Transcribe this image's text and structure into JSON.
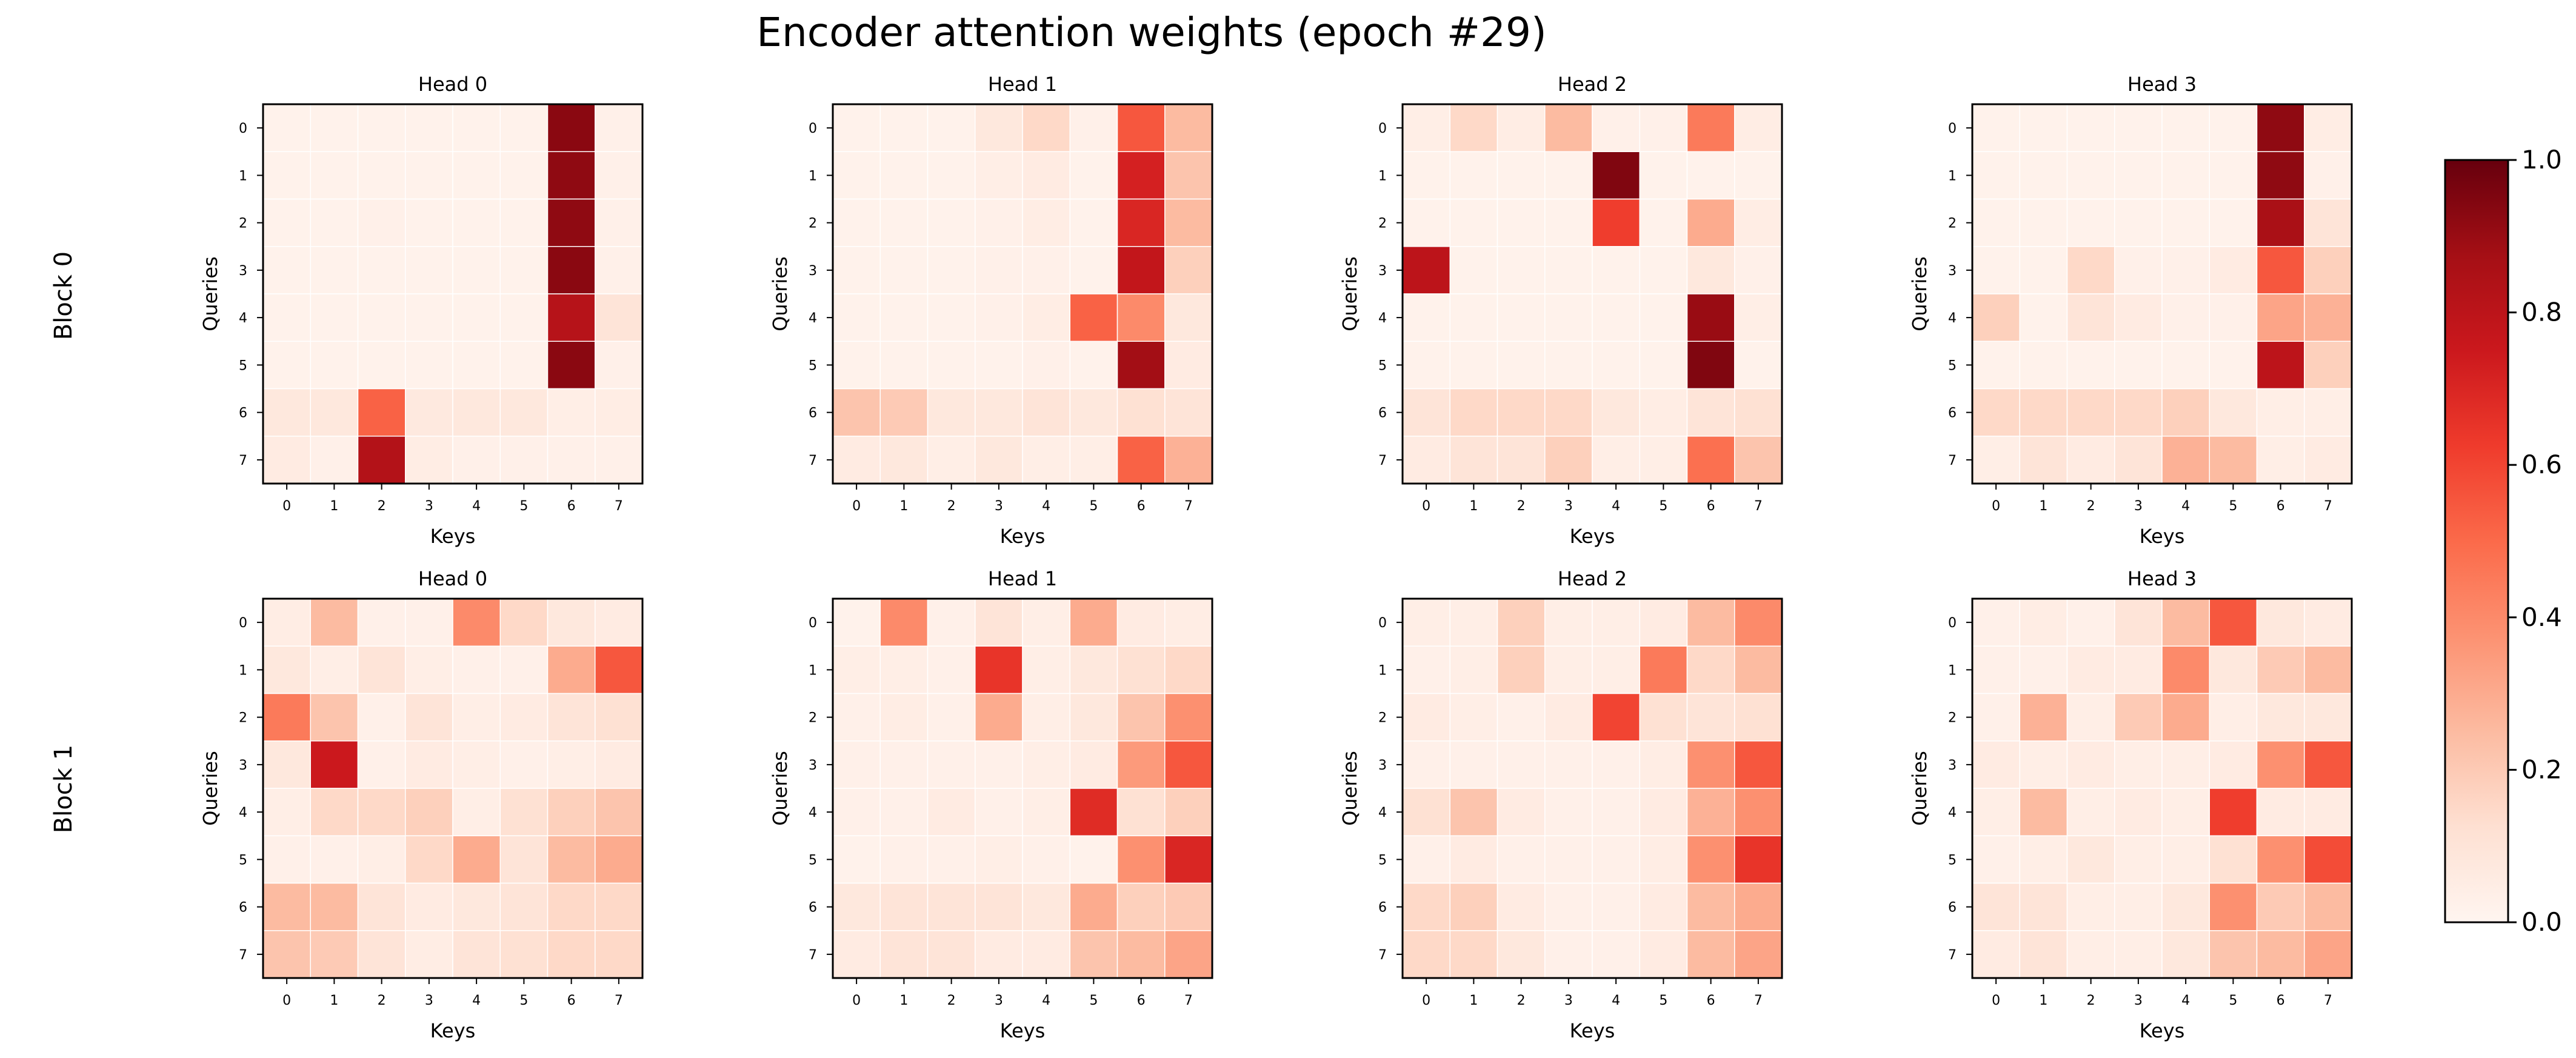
{
  "figure": {
    "title": "Encoder attention weights (epoch #29)",
    "row_labels": [
      "Block 0",
      "Block 1"
    ],
    "colors": {
      "cmap": "Reds",
      "cmap_stops": [
        "#fff5f0",
        "#fee0d2",
        "#fcbba1",
        "#fc9272",
        "#fb6a4a",
        "#ef3b2c",
        "#cb181d",
        "#a50f15",
        "#67000d"
      ],
      "frame": "#000000",
      "cell_border": "#ffffff"
    }
  },
  "colorbar": {
    "vmin": 0.0,
    "vmax": 1.0,
    "ticks": [
      0.0,
      0.2,
      0.4,
      0.6,
      0.8,
      1.0
    ],
    "tick_labels": [
      "0.0",
      "0.2",
      "0.4",
      "0.6",
      "0.8",
      "1.0"
    ]
  },
  "chart_data": [
    {
      "type": "heatmap",
      "block": "Block 0",
      "title": "Head 0",
      "xlabel": "Keys",
      "ylabel": "Queries",
      "x": [
        "0",
        "1",
        "2",
        "3",
        "4",
        "5",
        "6",
        "7"
      ],
      "y": [
        "0",
        "1",
        "2",
        "3",
        "4",
        "5",
        "6",
        "7"
      ],
      "values": [
        [
          0.02,
          0.02,
          0.02,
          0.02,
          0.02,
          0.02,
          0.93,
          0.03
        ],
        [
          0.02,
          0.02,
          0.02,
          0.02,
          0.02,
          0.02,
          0.92,
          0.03
        ],
        [
          0.02,
          0.02,
          0.03,
          0.02,
          0.02,
          0.02,
          0.92,
          0.03
        ],
        [
          0.02,
          0.02,
          0.02,
          0.02,
          0.02,
          0.02,
          0.93,
          0.03
        ],
        [
          0.02,
          0.02,
          0.02,
          0.02,
          0.02,
          0.02,
          0.82,
          0.1
        ],
        [
          0.02,
          0.02,
          0.02,
          0.02,
          0.02,
          0.02,
          0.93,
          0.03
        ],
        [
          0.08,
          0.08,
          0.52,
          0.07,
          0.08,
          0.08,
          0.04,
          0.05
        ],
        [
          0.06,
          0.03,
          0.83,
          0.05,
          0.03,
          0.03,
          0.03,
          0.03
        ]
      ]
    },
    {
      "type": "heatmap",
      "block": "Block 0",
      "title": "Head 1",
      "xlabel": "Keys",
      "ylabel": "Queries",
      "x": [
        "0",
        "1",
        "2",
        "3",
        "4",
        "5",
        "6",
        "7"
      ],
      "y": [
        "0",
        "1",
        "2",
        "3",
        "4",
        "5",
        "6",
        "7"
      ],
      "values": [
        [
          0.02,
          0.02,
          0.02,
          0.08,
          0.15,
          0.03,
          0.55,
          0.25
        ],
        [
          0.02,
          0.02,
          0.02,
          0.04,
          0.06,
          0.02,
          0.72,
          0.22
        ],
        [
          0.02,
          0.02,
          0.02,
          0.03,
          0.05,
          0.02,
          0.7,
          0.25
        ],
        [
          0.02,
          0.02,
          0.02,
          0.03,
          0.03,
          0.02,
          0.78,
          0.18
        ],
        [
          0.02,
          0.02,
          0.02,
          0.03,
          0.05,
          0.52,
          0.4,
          0.08
        ],
        [
          0.02,
          0.02,
          0.02,
          0.02,
          0.03,
          0.02,
          0.88,
          0.06
        ],
        [
          0.22,
          0.2,
          0.08,
          0.08,
          0.1,
          0.08,
          0.12,
          0.1
        ],
        [
          0.06,
          0.08,
          0.04,
          0.08,
          0.04,
          0.04,
          0.52,
          0.28
        ]
      ]
    },
    {
      "type": "heatmap",
      "block": "Block 0",
      "title": "Head 2",
      "xlabel": "Keys",
      "ylabel": "Queries",
      "x": [
        "0",
        "1",
        "2",
        "3",
        "4",
        "5",
        "6",
        "7"
      ],
      "y": [
        "0",
        "1",
        "2",
        "3",
        "4",
        "5",
        "6",
        "7"
      ],
      "values": [
        [
          0.04,
          0.15,
          0.05,
          0.25,
          0.03,
          0.03,
          0.45,
          0.05
        ],
        [
          0.02,
          0.02,
          0.02,
          0.02,
          0.95,
          0.02,
          0.02,
          0.02
        ],
        [
          0.02,
          0.02,
          0.02,
          0.02,
          0.62,
          0.02,
          0.3,
          0.05
        ],
        [
          0.8,
          0.02,
          0.02,
          0.02,
          0.02,
          0.02,
          0.08,
          0.03
        ],
        [
          0.02,
          0.02,
          0.02,
          0.02,
          0.02,
          0.02,
          0.9,
          0.04
        ],
        [
          0.02,
          0.02,
          0.02,
          0.02,
          0.02,
          0.02,
          0.95,
          0.02
        ],
        [
          0.1,
          0.15,
          0.15,
          0.15,
          0.08,
          0.05,
          0.1,
          0.12
        ],
        [
          0.06,
          0.1,
          0.1,
          0.18,
          0.04,
          0.04,
          0.48,
          0.22
        ]
      ]
    },
    {
      "type": "heatmap",
      "block": "Block 0",
      "title": "Head 3",
      "xlabel": "Keys",
      "ylabel": "Queries",
      "x": [
        "0",
        "1",
        "2",
        "3",
        "4",
        "5",
        "6",
        "7"
      ],
      "y": [
        "0",
        "1",
        "2",
        "3",
        "4",
        "5",
        "6",
        "7"
      ],
      "values": [
        [
          0.02,
          0.02,
          0.02,
          0.02,
          0.02,
          0.02,
          0.92,
          0.05
        ],
        [
          0.02,
          0.02,
          0.02,
          0.02,
          0.02,
          0.02,
          0.92,
          0.03
        ],
        [
          0.02,
          0.02,
          0.02,
          0.02,
          0.02,
          0.02,
          0.86,
          0.1
        ],
        [
          0.02,
          0.02,
          0.15,
          0.03,
          0.03,
          0.06,
          0.55,
          0.18
        ],
        [
          0.18,
          0.02,
          0.1,
          0.06,
          0.03,
          0.03,
          0.32,
          0.28
        ],
        [
          0.02,
          0.02,
          0.02,
          0.02,
          0.02,
          0.02,
          0.8,
          0.18
        ],
        [
          0.15,
          0.15,
          0.15,
          0.15,
          0.18,
          0.08,
          0.04,
          0.04
        ],
        [
          0.04,
          0.1,
          0.06,
          0.1,
          0.28,
          0.25,
          0.04,
          0.06
        ]
      ]
    },
    {
      "type": "heatmap",
      "block": "Block 1",
      "title": "Head 0",
      "xlabel": "Keys",
      "ylabel": "Queries",
      "x": [
        "0",
        "1",
        "2",
        "3",
        "4",
        "5",
        "6",
        "7"
      ],
      "y": [
        "0",
        "1",
        "2",
        "3",
        "4",
        "5",
        "6",
        "7"
      ],
      "values": [
        [
          0.05,
          0.25,
          0.03,
          0.03,
          0.4,
          0.15,
          0.08,
          0.06
        ],
        [
          0.08,
          0.04,
          0.1,
          0.04,
          0.03,
          0.03,
          0.3,
          0.55
        ],
        [
          0.45,
          0.22,
          0.03,
          0.1,
          0.04,
          0.06,
          0.1,
          0.12
        ],
        [
          0.08,
          0.75,
          0.03,
          0.06,
          0.04,
          0.03,
          0.04,
          0.06
        ],
        [
          0.04,
          0.15,
          0.15,
          0.18,
          0.04,
          0.12,
          0.18,
          0.22
        ],
        [
          0.03,
          0.03,
          0.04,
          0.15,
          0.3,
          0.1,
          0.25,
          0.3
        ],
        [
          0.25,
          0.25,
          0.1,
          0.06,
          0.08,
          0.1,
          0.15,
          0.15
        ],
        [
          0.22,
          0.2,
          0.1,
          0.05,
          0.1,
          0.12,
          0.15,
          0.15
        ]
      ]
    },
    {
      "type": "heatmap",
      "block": "Block 1",
      "title": "Head 1",
      "xlabel": "Keys",
      "ylabel": "Queries",
      "x": [
        "0",
        "1",
        "2",
        "3",
        "4",
        "5",
        "6",
        "7"
      ],
      "y": [
        "0",
        "1",
        "2",
        "3",
        "4",
        "5",
        "6",
        "7"
      ],
      "values": [
        [
          0.02,
          0.4,
          0.03,
          0.1,
          0.04,
          0.3,
          0.06,
          0.05
        ],
        [
          0.04,
          0.04,
          0.03,
          0.65,
          0.04,
          0.08,
          0.12,
          0.15
        ],
        [
          0.03,
          0.05,
          0.03,
          0.3,
          0.04,
          0.08,
          0.22,
          0.38
        ],
        [
          0.03,
          0.03,
          0.03,
          0.03,
          0.04,
          0.06,
          0.35,
          0.55
        ],
        [
          0.03,
          0.03,
          0.06,
          0.03,
          0.04,
          0.68,
          0.12,
          0.18
        ],
        [
          0.02,
          0.03,
          0.03,
          0.04,
          0.03,
          0.02,
          0.38,
          0.7
        ],
        [
          0.08,
          0.1,
          0.1,
          0.1,
          0.08,
          0.3,
          0.18,
          0.2
        ],
        [
          0.06,
          0.1,
          0.1,
          0.06,
          0.06,
          0.22,
          0.25,
          0.32
        ]
      ]
    },
    {
      "type": "heatmap",
      "block": "Block 1",
      "title": "Head 2",
      "xlabel": "Keys",
      "ylabel": "Queries",
      "x": [
        "0",
        "1",
        "2",
        "3",
        "4",
        "5",
        "6",
        "7"
      ],
      "y": [
        "0",
        "1",
        "2",
        "3",
        "4",
        "5",
        "6",
        "7"
      ],
      "values": [
        [
          0.04,
          0.04,
          0.18,
          0.04,
          0.04,
          0.06,
          0.25,
          0.4
        ],
        [
          0.03,
          0.04,
          0.18,
          0.04,
          0.04,
          0.45,
          0.15,
          0.25
        ],
        [
          0.06,
          0.04,
          0.03,
          0.06,
          0.6,
          0.12,
          0.1,
          0.12
        ],
        [
          0.03,
          0.03,
          0.03,
          0.03,
          0.03,
          0.05,
          0.38,
          0.55
        ],
        [
          0.12,
          0.22,
          0.06,
          0.03,
          0.03,
          0.06,
          0.28,
          0.38
        ],
        [
          0.03,
          0.06,
          0.03,
          0.03,
          0.03,
          0.05,
          0.38,
          0.65
        ],
        [
          0.15,
          0.18,
          0.06,
          0.03,
          0.03,
          0.06,
          0.25,
          0.3
        ],
        [
          0.15,
          0.15,
          0.08,
          0.03,
          0.03,
          0.06,
          0.25,
          0.32
        ]
      ]
    },
    {
      "type": "heatmap",
      "block": "Block 1",
      "title": "Head 3",
      "xlabel": "Keys",
      "ylabel": "Queries",
      "x": [
        "0",
        "1",
        "2",
        "3",
        "4",
        "5",
        "6",
        "7"
      ],
      "y": [
        "0",
        "1",
        "2",
        "3",
        "4",
        "5",
        "6",
        "7"
      ],
      "values": [
        [
          0.03,
          0.05,
          0.03,
          0.1,
          0.25,
          0.55,
          0.08,
          0.06
        ],
        [
          0.03,
          0.03,
          0.06,
          0.06,
          0.4,
          0.08,
          0.2,
          0.25
        ],
        [
          0.03,
          0.28,
          0.04,
          0.2,
          0.3,
          0.04,
          0.08,
          0.08
        ],
        [
          0.06,
          0.04,
          0.06,
          0.04,
          0.04,
          0.06,
          0.38,
          0.55
        ],
        [
          0.04,
          0.25,
          0.04,
          0.06,
          0.04,
          0.62,
          0.06,
          0.06
        ],
        [
          0.03,
          0.04,
          0.08,
          0.04,
          0.04,
          0.12,
          0.38,
          0.58
        ],
        [
          0.1,
          0.1,
          0.04,
          0.04,
          0.08,
          0.38,
          0.2,
          0.25
        ],
        [
          0.06,
          0.1,
          0.04,
          0.04,
          0.08,
          0.22,
          0.25,
          0.32
        ]
      ]
    }
  ]
}
